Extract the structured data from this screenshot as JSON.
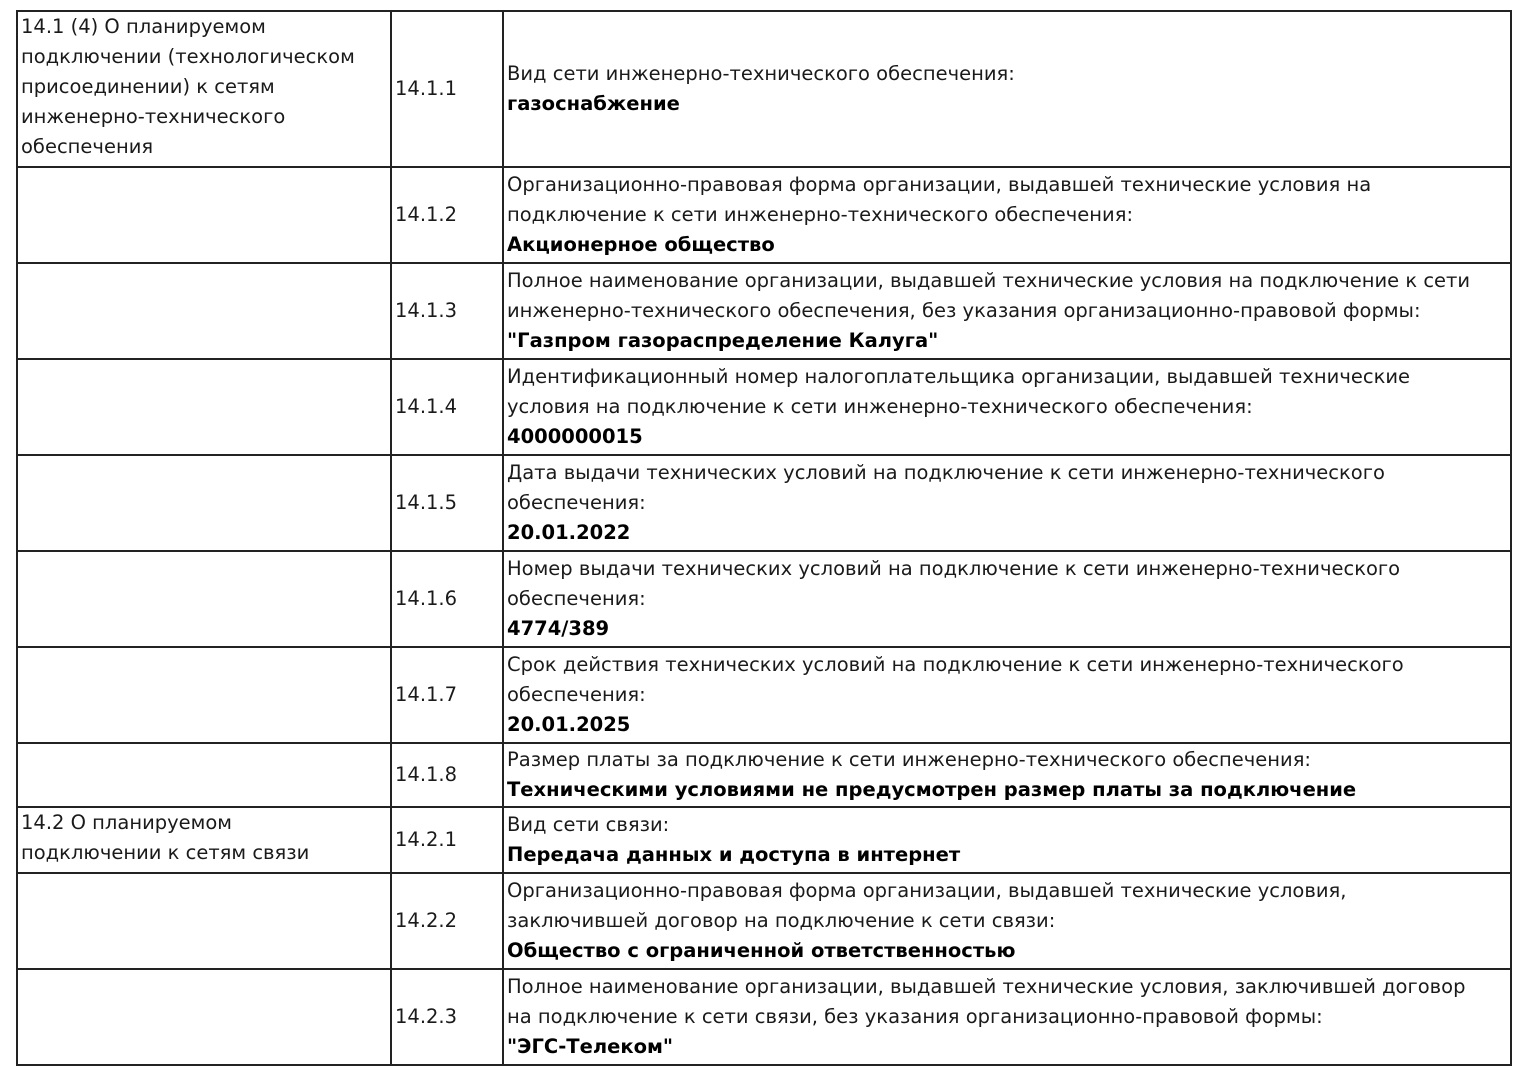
{
  "rows": [
    {
      "section": [
        "14.1 (4) О планируемом",
        "подключении (технологическом",
        "присоединении) к сетям",
        "инженерно-технического",
        "обеспечения"
      ],
      "num": "14.1.1",
      "desc": [
        "Вид сети инженерно-технического обеспечения:"
      ],
      "value": "газоснабжение"
    },
    {
      "section": [],
      "num": "14.1.2",
      "desc": [
        "Организационно-правовая форма организации, выдавшей технические условия на",
        "подключение к сети инженерно-технического обеспечения:"
      ],
      "value": "Акционерное общество"
    },
    {
      "section": [],
      "num": "14.1.3",
      "desc": [
        "Полное наименование организации, выдавшей технические условия на подключение к сети",
        "инженерно-технического обеспечения, без указания организационно-правовой формы:"
      ],
      "value": "\"Газпром газораспределение Калуга\""
    },
    {
      "section": [],
      "num": "14.1.4",
      "desc": [
        "Идентификационный номер налогоплательщика организации, выдавшей технические",
        "условия на подключение к сети инженерно-технического обеспечения:"
      ],
      "value": "4000000015"
    },
    {
      "section": [],
      "num": "14.1.5",
      "desc": [
        "Дата выдачи технических условий на подключение к сети инженерно-технического",
        "обеспечения:"
      ],
      "value": "20.01.2022"
    },
    {
      "section": [],
      "num": "14.1.6",
      "desc": [
        "Номер выдачи технических условий на подключение к сети инженерно-технического",
        "обеспечения:"
      ],
      "value": "4774/389"
    },
    {
      "section": [],
      "num": "14.1.7",
      "desc": [
        "Срок действия технических условий на подключение к сети инженерно-технического",
        "обеспечения:"
      ],
      "value": "20.01.2025"
    },
    {
      "section": [],
      "num": "14.1.8",
      "desc": [
        "Размер платы за подключение к сети инженерно-технического обеспечения:"
      ],
      "value": "Техническими условиями не предусмотрен размер платы за подключение"
    },
    {
      "section": [
        "14.2 О планируемом",
        "подключении к сетям связи"
      ],
      "num": "14.2.1",
      "desc": [
        "Вид сети связи:"
      ],
      "value": "Передача данных и доступа в интернет"
    },
    {
      "section": [],
      "num": "14.2.2",
      "desc": [
        "Организационно-правовая форма организации, выдавшей технические условия,",
        "заключившей договор на подключение к сети связи:"
      ],
      "value": "Общество с ограниченной ответственностью"
    },
    {
      "section": [],
      "num": "14.2.3",
      "desc": [
        "Полное наименование организации, выдавшей технические условия, заключившей договор",
        "на подключение к сети связи, без указания организационно-правовой формы:"
      ],
      "value": "\"ЭГС-Телеком\""
    }
  ]
}
